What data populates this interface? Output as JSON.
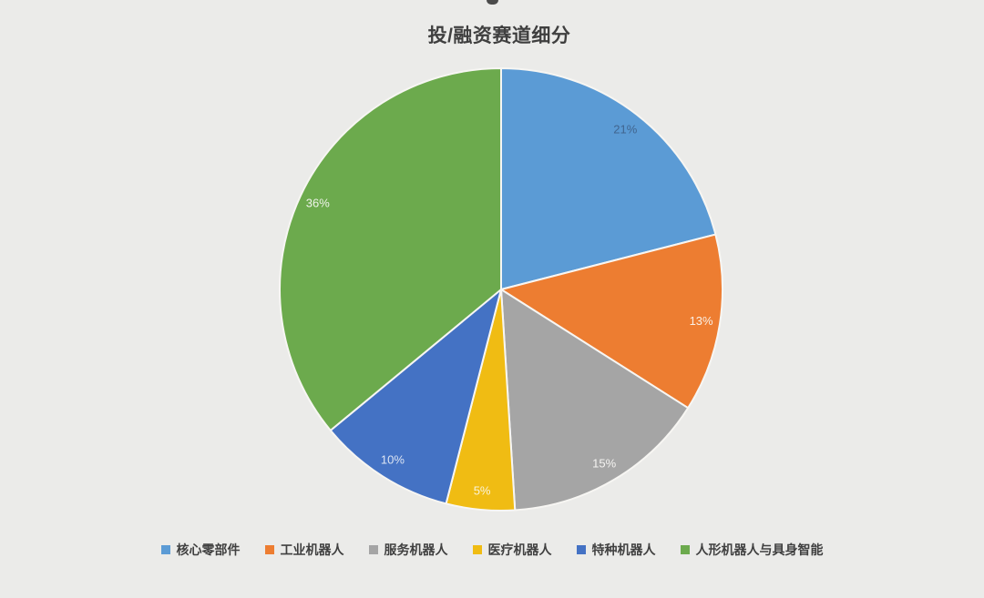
{
  "page": {
    "background_color": "#ebebe9",
    "top_edge_artifact": "partial dark glyph cut off at top center"
  },
  "chart_data": {
    "type": "pie",
    "title": "投/融资赛道细分",
    "title_color": "#3f3f3f",
    "unit": "%",
    "start_angle_deg": 0,
    "direction": "clockwise",
    "legend_position": "bottom",
    "legend_text_color": "#404040",
    "slice_border_color": "#f7f6f3",
    "slices": [
      {
        "label": "核心零部件",
        "value": 21,
        "color": "#5b9bd5",
        "label_color": "#41658f"
      },
      {
        "label": "工业机器人",
        "value": 13,
        "color": "#ed7d31",
        "label_color": "#faf0e5"
      },
      {
        "label": "服务机器人",
        "value": 15,
        "color": "#a5a5a5",
        "label_color": "#f4f3f1"
      },
      {
        "label": "医疗机器人",
        "value": 5,
        "color": "#f0bc13",
        "label_color": "#faf3da"
      },
      {
        "label": "特种机器人",
        "value": 10,
        "color": "#4472c4",
        "label_color": "#dde5f3"
      },
      {
        "label": "人形机器人与具身智能",
        "value": 36,
        "color": "#6caa4d",
        "label_color": "#eff4ea"
      }
    ]
  }
}
